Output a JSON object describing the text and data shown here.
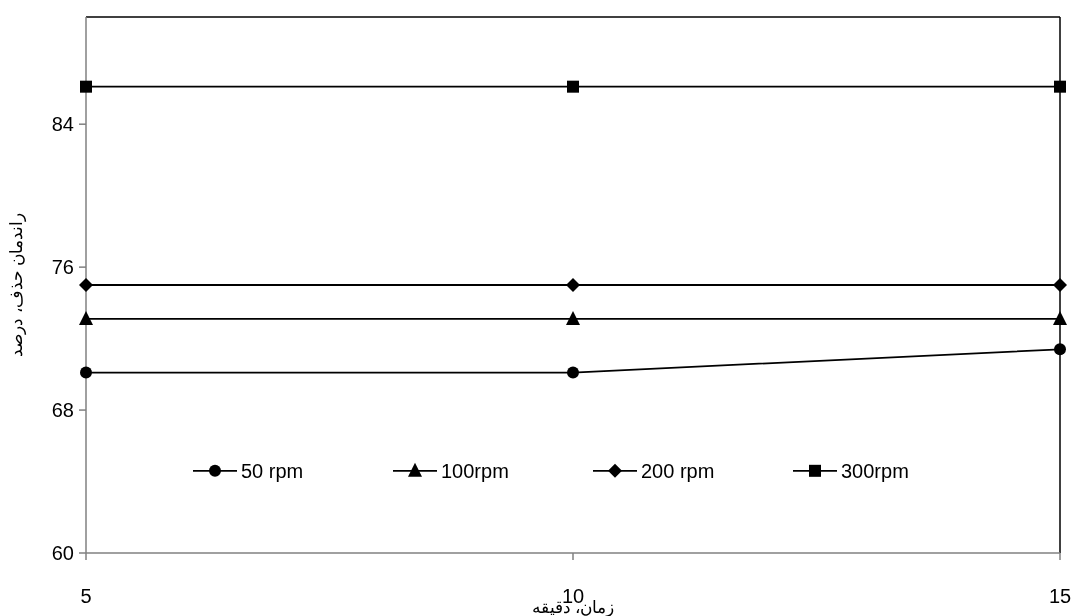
{
  "chart_data": {
    "type": "line",
    "xlabel": "زمان، دقیقه",
    "ylabel": "راندمان حذف، درصد",
    "x": [
      5,
      10,
      15
    ],
    "xlim": [
      5,
      15
    ],
    "xticks": [
      5,
      10,
      15
    ],
    "ylim": [
      60,
      90
    ],
    "yticks": [
      60,
      68,
      76,
      84
    ],
    "grid": false,
    "legend": "bottom",
    "line_style": "solid",
    "series": [
      {
        "name": "50 rpm",
        "color": "#000000",
        "marker": "circle",
        "values": [
          70.1,
          70.1,
          71.4
        ]
      },
      {
        "name": "100rpm",
        "color": "#000000",
        "marker": "triangle",
        "values": [
          73.1,
          73.1,
          73.1
        ]
      },
      {
        "name": "200 rpm",
        "color": "#000000",
        "marker": "diamond",
        "values": [
          75.0,
          75.0,
          75.0
        ]
      },
      {
        "name": "300rpm",
        "color": "#000000",
        "marker": "square",
        "values": [
          86.1,
          86.1,
          86.1
        ]
      }
    ]
  }
}
